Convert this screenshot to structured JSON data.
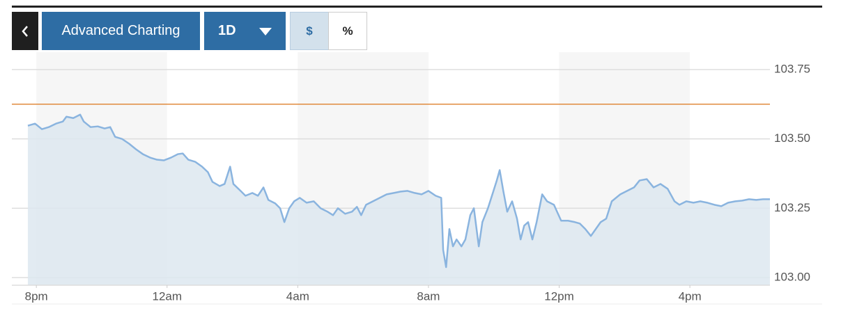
{
  "toolbar": {
    "title": "Advanced Charting",
    "period": "1D",
    "modes": [
      "$",
      "%"
    ]
  },
  "chart_data": {
    "type": "area",
    "x": [
      -0.26,
      -0.04,
      0.17,
      0.38,
      0.6,
      0.81,
      0.92,
      1.13,
      1.34,
      1.45,
      1.66,
      1.88,
      2.09,
      2.26,
      2.41,
      2.62,
      2.84,
      3.05,
      3.26,
      3.48,
      3.69,
      3.9,
      4.12,
      4.33,
      4.48,
      4.65,
      4.86,
      5.07,
      5.25,
      5.39,
      5.61,
      5.76,
      5.93,
      6.03,
      6.25,
      6.4,
      6.61,
      6.78,
      6.95,
      7.1,
      7.31,
      7.46,
      7.59,
      7.74,
      7.89,
      8.06,
      8.27,
      8.49,
      8.7,
      8.91,
      9.08,
      9.23,
      9.45,
      9.66,
      9.81,
      9.94,
      10.09,
      10.3,
      10.51,
      10.72,
      10.94,
      11.15,
      11.36,
      11.58,
      11.79,
      12.0,
      12.22,
      12.39,
      12.45,
      12.54,
      12.64,
      12.75,
      12.86,
      13.01,
      13.13,
      13.28,
      13.39,
      13.54,
      13.65,
      13.82,
      13.99,
      14.09,
      14.18,
      14.29,
      14.41,
      14.56,
      14.71,
      14.82,
      14.93,
      15.05,
      15.18,
      15.31,
      15.48,
      15.63,
      15.84,
      16.06,
      16.27,
      16.48,
      16.63,
      16.8,
      16.97,
      17.12,
      17.27,
      17.44,
      17.61,
      17.87,
      18.08,
      18.29,
      18.46,
      18.68,
      18.89,
      19.1,
      19.32,
      19.53,
      19.68,
      19.89,
      20.11,
      20.32,
      20.53,
      20.75,
      20.96,
      21.17,
      21.39,
      21.6,
      21.81,
      22.03,
      22.24,
      22.45
    ],
    "series": [
      {
        "color": "#8ab4df",
        "fill": "#dde8f0",
        "values": [
          103.5475,
          103.555,
          103.535,
          103.5425,
          103.555,
          103.5625,
          103.58,
          103.575,
          103.5875,
          103.5625,
          103.5425,
          103.545,
          103.5375,
          103.5425,
          103.5075,
          103.5,
          103.4825,
          103.4625,
          103.445,
          103.4325,
          103.425,
          103.4225,
          103.4325,
          103.445,
          103.4475,
          103.425,
          103.4175,
          103.4,
          103.38,
          103.345,
          103.33,
          103.3375,
          103.4,
          103.3375,
          103.3125,
          103.295,
          103.305,
          103.295,
          103.325,
          103.28,
          103.2675,
          103.25,
          103.2,
          103.25,
          103.275,
          103.2875,
          103.27,
          103.275,
          103.25,
          103.2375,
          103.225,
          103.25,
          103.23,
          103.2375,
          103.255,
          103.225,
          103.2625,
          103.275,
          103.2875,
          103.3,
          103.305,
          103.31,
          103.3125,
          103.305,
          103.3,
          103.3125,
          103.295,
          103.2875,
          103.1,
          103.0375,
          103.175,
          103.1125,
          103.1375,
          103.1125,
          103.1375,
          103.225,
          103.25,
          103.1125,
          103.2,
          103.25,
          103.3125,
          103.35,
          103.3875,
          103.3125,
          103.2375,
          103.275,
          103.2125,
          103.1375,
          103.1875,
          103.2,
          103.1375,
          103.2,
          103.3,
          103.275,
          103.2625,
          103.205,
          103.205,
          103.2,
          103.195,
          103.175,
          103.15,
          103.175,
          103.2,
          103.2125,
          103.275,
          103.3,
          103.3125,
          103.325,
          103.35,
          103.355,
          103.325,
          103.3375,
          103.32,
          103.275,
          103.2625,
          103.275,
          103.27,
          103.275,
          103.27,
          103.2625,
          103.2575,
          103.27,
          103.275,
          103.2775,
          103.2825,
          103.28,
          103.2825,
          103.2825
        ]
      }
    ],
    "reference_line": {
      "value": 103.625,
      "color": "#e08a3c"
    },
    "xlim": [
      -0.75,
      22.45
    ],
    "xticks": [
      {
        "value": 0,
        "label": "8pm"
      },
      {
        "value": 4,
        "label": "12am"
      },
      {
        "value": 8,
        "label": "4am"
      },
      {
        "value": 12,
        "label": "8am"
      },
      {
        "value": 16,
        "label": "12pm"
      },
      {
        "value": 20,
        "label": "4pm"
      }
    ],
    "ylim": [
      102.9725,
      103.8
    ],
    "yticks": [
      103.75,
      {
        "value": 103.5,
        "label": "103.50"
      },
      103.25,
      {
        "value": 103,
        "label": "103.00"
      }
    ],
    "grid": true,
    "band_color": "#f6f6f6"
  }
}
